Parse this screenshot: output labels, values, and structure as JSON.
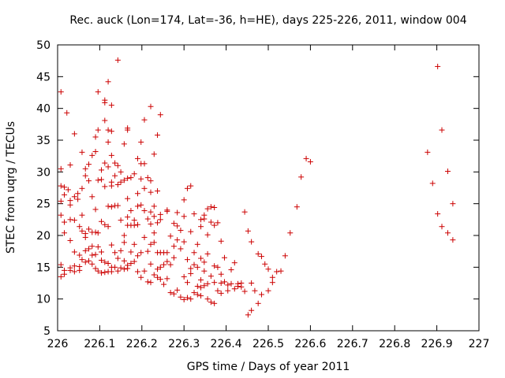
{
  "chart_data": {
    "type": "scatter",
    "title": "Rec. auck (Lon=174, Lat=-36, h=HE), days 225-226, 2011, window 004",
    "xlabel": "GPS time / Days of year 2011",
    "ylabel": "STEC from uqrg / TECUs",
    "xlim": [
      226,
      227
    ],
    "ylim": [
      5,
      50
    ],
    "xticks": [
      226,
      226.1,
      226.2,
      226.3,
      226.4,
      226.5,
      226.6,
      226.7,
      226.8,
      226.9,
      227
    ],
    "yticks": [
      5,
      10,
      15,
      20,
      25,
      30,
      35,
      40,
      45,
      50
    ],
    "grid": false,
    "marker": "+",
    "color": "#cc0000",
    "points": [
      [
        226.008,
        42.6
      ],
      [
        226.008,
        30.5
      ],
      [
        226.008,
        27.8
      ],
      [
        226.008,
        25.4
      ],
      [
        226.008,
        23.2
      ],
      [
        226.008,
        15.4
      ],
      [
        226.008,
        13.5
      ],
      [
        226.016,
        27.6
      ],
      [
        226.016,
        26.4
      ],
      [
        226.016,
        22.1
      ],
      [
        226.016,
        20.4
      ],
      [
        226.016,
        14.5
      ],
      [
        226.016,
        13.9
      ],
      [
        226.022,
        39.3
      ],
      [
        226.025,
        27.2
      ],
      [
        226.03,
        31.1
      ],
      [
        226.03,
        25.5
      ],
      [
        226.03,
        24.8
      ],
      [
        226.03,
        22.5
      ],
      [
        226.03,
        19.2
      ],
      [
        226.03,
        14.9
      ],
      [
        226.03,
        14.5
      ],
      [
        226.04,
        36.0
      ],
      [
        226.04,
        26.1
      ],
      [
        226.04,
        22.4
      ],
      [
        226.04,
        17.4
      ],
      [
        226.04,
        15.2
      ],
      [
        226.04,
        14.3
      ],
      [
        226.048,
        26.6
      ],
      [
        226.048,
        25.7
      ],
      [
        226.052,
        21.4
      ],
      [
        226.052,
        16.9
      ],
      [
        226.052,
        15.1
      ],
      [
        226.052,
        14.5
      ],
      [
        226.058,
        33.1
      ],
      [
        226.058,
        27.4
      ],
      [
        226.058,
        23.2
      ],
      [
        226.058,
        20.7
      ],
      [
        226.058,
        16.2
      ],
      [
        226.066,
        30.5
      ],
      [
        226.066,
        29.4
      ],
      [
        226.066,
        20.3
      ],
      [
        226.066,
        19.7
      ],
      [
        226.066,
        17.6
      ],
      [
        226.066,
        15.8
      ],
      [
        226.074,
        31.2
      ],
      [
        226.074,
        28.6
      ],
      [
        226.074,
        21.0
      ],
      [
        226.074,
        17.9
      ],
      [
        226.074,
        16.0
      ],
      [
        226.082,
        32.6
      ],
      [
        226.082,
        26.1
      ],
      [
        226.082,
        20.5
      ],
      [
        226.082,
        18.3
      ],
      [
        226.082,
        16.9
      ],
      [
        226.082,
        15.5
      ],
      [
        226.09,
        35.5
      ],
      [
        226.09,
        33.2
      ],
      [
        226.09,
        24.1
      ],
      [
        226.09,
        20.5
      ],
      [
        226.09,
        17.0
      ],
      [
        226.09,
        14.8
      ],
      [
        226.096,
        42.6
      ],
      [
        226.096,
        36.6
      ],
      [
        226.096,
        28.7
      ],
      [
        226.096,
        20.4
      ],
      [
        226.096,
        18.2
      ],
      [
        226.096,
        14.4
      ],
      [
        226.104,
        30.3
      ],
      [
        226.104,
        28.8
      ],
      [
        226.104,
        22.2
      ],
      [
        226.104,
        17.4
      ],
      [
        226.104,
        16.1
      ],
      [
        226.104,
        14.1
      ],
      [
        226.112,
        41.3
      ],
      [
        226.112,
        40.9
      ],
      [
        226.112,
        38.1
      ],
      [
        226.112,
        31.4
      ],
      [
        226.112,
        27.7
      ],
      [
        226.112,
        21.7
      ],
      [
        226.112,
        15.8
      ],
      [
        226.112,
        14.2
      ],
      [
        226.12,
        44.2
      ],
      [
        226.12,
        36.6
      ],
      [
        226.12,
        34.7
      ],
      [
        226.12,
        30.8
      ],
      [
        226.12,
        24.6
      ],
      [
        226.12,
        21.4
      ],
      [
        226.12,
        15.6
      ],
      [
        226.12,
        14.3
      ],
      [
        226.128,
        40.5
      ],
      [
        226.128,
        36.4
      ],
      [
        226.128,
        32.6
      ],
      [
        226.128,
        28.4
      ],
      [
        226.128,
        27.8
      ],
      [
        226.128,
        24.5
      ],
      [
        226.128,
        18.5
      ],
      [
        226.128,
        15.0
      ],
      [
        226.128,
        14.3
      ],
      [
        226.136,
        31.4
      ],
      [
        226.136,
        29.4
      ],
      [
        226.136,
        24.7
      ],
      [
        226.136,
        17.3
      ],
      [
        226.136,
        15.0
      ],
      [
        226.143,
        47.6
      ],
      [
        226.143,
        31.0
      ],
      [
        226.143,
        28.0
      ],
      [
        226.143,
        24.7
      ],
      [
        226.143,
        16.4
      ],
      [
        226.143,
        14.4
      ],
      [
        226.15,
        30.0
      ],
      [
        226.15,
        28.4
      ],
      [
        226.15,
        22.4
      ],
      [
        226.15,
        17.6
      ],
      [
        226.15,
        14.9
      ],
      [
        226.158,
        34.4
      ],
      [
        226.158,
        28.7
      ],
      [
        226.158,
        20.0
      ],
      [
        226.158,
        18.9
      ],
      [
        226.158,
        16.0
      ],
      [
        226.158,
        14.7
      ],
      [
        226.166,
        36.9
      ],
      [
        226.166,
        36.6
      ],
      [
        226.166,
        29.0
      ],
      [
        226.166,
        25.8
      ],
      [
        226.166,
        22.9
      ],
      [
        226.166,
        21.6
      ],
      [
        226.166,
        15.3
      ],
      [
        226.166,
        14.8
      ],
      [
        226.174,
        29.1
      ],
      [
        226.174,
        23.9
      ],
      [
        226.174,
        21.6
      ],
      [
        226.174,
        17.4
      ],
      [
        226.174,
        15.6
      ],
      [
        226.182,
        29.7
      ],
      [
        226.182,
        22.4
      ],
      [
        226.182,
        21.6
      ],
      [
        226.182,
        18.6
      ],
      [
        226.182,
        15.9
      ],
      [
        226.19,
        32.1
      ],
      [
        226.19,
        26.6
      ],
      [
        226.19,
        24.6
      ],
      [
        226.19,
        21.7
      ],
      [
        226.19,
        16.8
      ],
      [
        226.19,
        14.3
      ],
      [
        226.198,
        34.7
      ],
      [
        226.198,
        31.3
      ],
      [
        226.198,
        28.9
      ],
      [
        226.198,
        24.8
      ],
      [
        226.198,
        17.3
      ],
      [
        226.198,
        13.4
      ],
      [
        226.206,
        38.2
      ],
      [
        226.206,
        31.3
      ],
      [
        226.206,
        27.4
      ],
      [
        226.206,
        23.9
      ],
      [
        226.206,
        19.7
      ],
      [
        226.206,
        14.4
      ],
      [
        226.214,
        29.1
      ],
      [
        226.214,
        22.6
      ],
      [
        226.214,
        17.5
      ],
      [
        226.214,
        12.7
      ],
      [
        226.221,
        40.3
      ],
      [
        226.221,
        28.6
      ],
      [
        226.221,
        26.8
      ],
      [
        226.221,
        23.7
      ],
      [
        226.221,
        21.8
      ],
      [
        226.221,
        18.6
      ],
      [
        226.221,
        15.5
      ],
      [
        226.221,
        12.6
      ],
      [
        226.229,
        32.8
      ],
      [
        226.229,
        24.6
      ],
      [
        226.229,
        23.0
      ],
      [
        226.229,
        20.4
      ],
      [
        226.229,
        18.9
      ],
      [
        226.229,
        13.8
      ],
      [
        226.237,
        35.8
      ],
      [
        226.237,
        27.0
      ],
      [
        226.237,
        22.0
      ],
      [
        226.237,
        17.3
      ],
      [
        226.237,
        14.7
      ],
      [
        226.237,
        13.4
      ],
      [
        226.244,
        39.0
      ],
      [
        226.244,
        23.3
      ],
      [
        226.244,
        22.5
      ],
      [
        226.244,
        17.3
      ],
      [
        226.244,
        15.0
      ],
      [
        226.244,
        13.1
      ],
      [
        226.252,
        17.3
      ],
      [
        226.252,
        15.4
      ],
      [
        226.252,
        12.3
      ],
      [
        226.26,
        24.0
      ],
      [
        226.26,
        23.8
      ],
      [
        226.26,
        17.3
      ],
      [
        226.26,
        15.9
      ],
      [
        226.26,
        13.2
      ],
      [
        226.268,
        19.9
      ],
      [
        226.268,
        15.4
      ],
      [
        226.268,
        11.0
      ],
      [
        226.276,
        21.9
      ],
      [
        226.276,
        18.3
      ],
      [
        226.276,
        16.5
      ],
      [
        226.276,
        10.8
      ],
      [
        226.284,
        23.6
      ],
      [
        226.284,
        21.5
      ],
      [
        226.284,
        19.3
      ],
      [
        226.284,
        11.4
      ],
      [
        226.292,
        20.8
      ],
      [
        226.292,
        17.9
      ],
      [
        226.292,
        10.3
      ],
      [
        226.3,
        25.6
      ],
      [
        226.3,
        23.0
      ],
      [
        226.3,
        19.0
      ],
      [
        226.3,
        13.5
      ],
      [
        226.3,
        9.9
      ],
      [
        226.308,
        27.4
      ],
      [
        226.308,
        16.2
      ],
      [
        226.308,
        12.6
      ],
      [
        226.308,
        10.2
      ],
      [
        226.316,
        27.8
      ],
      [
        226.316,
        20.6
      ],
      [
        226.316,
        14.8
      ],
      [
        226.316,
        14.0
      ],
      [
        226.316,
        10.0
      ],
      [
        226.324,
        23.4
      ],
      [
        226.324,
        17.3
      ],
      [
        226.324,
        15.4
      ],
      [
        226.324,
        11.0
      ],
      [
        226.332,
        18.6
      ],
      [
        226.332,
        15.0
      ],
      [
        226.332,
        12.0
      ],
      [
        226.332,
        10.7
      ],
      [
        226.34,
        22.5
      ],
      [
        226.34,
        21.4
      ],
      [
        226.34,
        16.4
      ],
      [
        226.34,
        13.0
      ],
      [
        226.34,
        11.8
      ],
      [
        226.34,
        10.5
      ],
      [
        226.348,
        23.2
      ],
      [
        226.348,
        22.6
      ],
      [
        226.348,
        15.8
      ],
      [
        226.348,
        14.4
      ],
      [
        226.348,
        12.1
      ],
      [
        226.356,
        24.2
      ],
      [
        226.356,
        20.1
      ],
      [
        226.356,
        17.1
      ],
      [
        226.356,
        12.4
      ],
      [
        226.356,
        10.0
      ],
      [
        226.364,
        24.5
      ],
      [
        226.364,
        22.1
      ],
      [
        226.364,
        13.6
      ],
      [
        226.364,
        9.5
      ],
      [
        226.372,
        24.4
      ],
      [
        226.372,
        21.6
      ],
      [
        226.372,
        15.2
      ],
      [
        226.372,
        12.6
      ],
      [
        226.372,
        9.3
      ],
      [
        226.38,
        22.0
      ],
      [
        226.38,
        15.0
      ],
      [
        226.38,
        11.3
      ],
      [
        226.388,
        19.1
      ],
      [
        226.388,
        13.9
      ],
      [
        226.388,
        12.5
      ],
      [
        226.388,
        10.9
      ],
      [
        226.396,
        16.5
      ],
      [
        226.396,
        12.7
      ],
      [
        226.404,
        12.2
      ],
      [
        226.404,
        11.3
      ],
      [
        226.412,
        14.6
      ],
      [
        226.412,
        12.4
      ],
      [
        226.42,
        15.7
      ],
      [
        226.42,
        11.6
      ],
      [
        226.428,
        12.4
      ],
      [
        226.428,
        12.0
      ],
      [
        226.436,
        12.5
      ],
      [
        226.436,
        11.9
      ],
      [
        226.444,
        23.7
      ],
      [
        226.444,
        11.2
      ],
      [
        226.452,
        20.7
      ],
      [
        226.452,
        7.5
      ],
      [
        226.46,
        19.0
      ],
      [
        226.46,
        12.5
      ],
      [
        226.46,
        8.2
      ],
      [
        226.468,
        11.3
      ],
      [
        226.476,
        17.1
      ],
      [
        226.476,
        9.3
      ],
      [
        226.484,
        16.7
      ],
      [
        226.484,
        10.7
      ],
      [
        226.492,
        15.5
      ],
      [
        226.5,
        14.7
      ],
      [
        226.5,
        11.3
      ],
      [
        226.51,
        13.4
      ],
      [
        226.51,
        12.6
      ],
      [
        226.52,
        14.3
      ],
      [
        226.53,
        14.4
      ],
      [
        226.54,
        16.8
      ],
      [
        226.552,
        20.4
      ],
      [
        226.568,
        24.5
      ],
      [
        226.578,
        29.2
      ],
      [
        226.59,
        32.1
      ],
      [
        226.6,
        31.6
      ],
      [
        226.878,
        33.1
      ],
      [
        226.89,
        28.2
      ],
      [
        226.902,
        46.6
      ],
      [
        226.902,
        23.4
      ],
      [
        226.912,
        36.6
      ],
      [
        226.912,
        21.4
      ],
      [
        226.926,
        30.1
      ],
      [
        226.926,
        20.4
      ],
      [
        226.938,
        25.0
      ],
      [
        226.938,
        19.3
      ]
    ]
  }
}
